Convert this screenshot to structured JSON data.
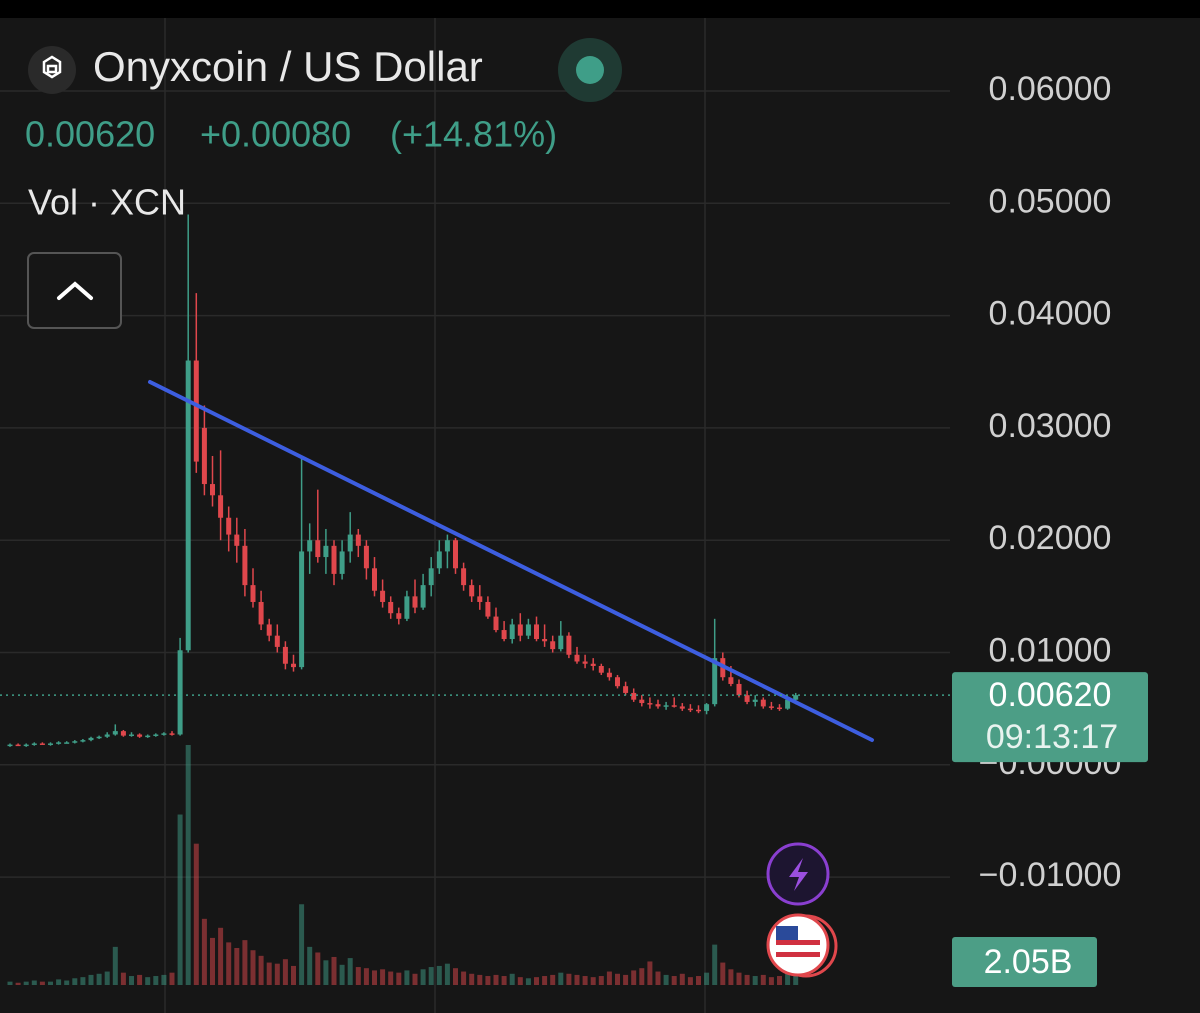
{
  "header": {
    "title": "Onyxcoin / US Dollar",
    "price": "0.00620",
    "change": "+0.00080",
    "change_pct": "(+14.81%)",
    "panel_label": "Vol · XCN"
  },
  "chart_data": {
    "type": "candlestick",
    "up_color": "#3f9e88",
    "down_color": "#e0474c",
    "ylim": [
      -0.0221,
      0.0665
    ],
    "yticks": [
      {
        "value": 0.06,
        "label": "0.06000"
      },
      {
        "value": 0.05,
        "label": "0.05000"
      },
      {
        "value": 0.04,
        "label": "0.04000"
      },
      {
        "value": 0.03,
        "label": "0.03000"
      },
      {
        "value": 0.02,
        "label": "0.02000"
      },
      {
        "value": 0.01,
        "label": "0.01000"
      },
      {
        "value": 0,
        "label": "−0.00000"
      },
      {
        "value": -0.01,
        "label": "−0.01000"
      }
    ],
    "grid": true,
    "open": [
      0.0017,
      0.0018,
      0.0017,
      0.0018,
      0.0019,
      0.0018,
      0.0019,
      0.002,
      0.002,
      0.0021,
      0.0022,
      0.0024,
      0.0025,
      0.0027,
      0.003,
      0.0026,
      0.0027,
      0.0025,
      0.0026,
      0.0027,
      0.0028,
      0.0027,
      0.0102,
      0.036,
      0.03,
      0.025,
      0.024,
      0.022,
      0.0205,
      0.0195,
      0.016,
      0.0145,
      0.0125,
      0.0115,
      0.0105,
      0.009,
      0.0087,
      0.019,
      0.02,
      0.0185,
      0.0195,
      0.017,
      0.019,
      0.0205,
      0.0195,
      0.0175,
      0.0155,
      0.0145,
      0.0135,
      0.013,
      0.015,
      0.014,
      0.016,
      0.0175,
      0.019,
      0.02,
      0.0175,
      0.016,
      0.015,
      0.0145,
      0.0132,
      0.012,
      0.0112,
      0.0125,
      0.0115,
      0.0125,
      0.0112,
      0.011,
      0.0103,
      0.0115,
      0.0098,
      0.0092,
      0.009,
      0.0088,
      0.0082,
      0.0078,
      0.007,
      0.0064,
      0.0058,
      0.0055,
      0.0054,
      0.0052,
      0.0053,
      0.0052,
      0.005,
      0.0049,
      0.0048,
      0.0054,
      0.0095,
      0.0078,
      0.0072,
      0.0062,
      0.0056,
      0.0058,
      0.0052,
      0.0051,
      0.005,
      0.0058
    ],
    "high": [
      0.0019,
      0.0019,
      0.0019,
      0.002,
      0.002,
      0.002,
      0.0021,
      0.0021,
      0.0022,
      0.0023,
      0.0025,
      0.0026,
      0.0029,
      0.0036,
      0.0031,
      0.0029,
      0.0028,
      0.0027,
      0.0028,
      0.0029,
      0.003,
      0.0113,
      0.049,
      0.042,
      0.032,
      0.0275,
      0.028,
      0.023,
      0.022,
      0.021,
      0.0175,
      0.0155,
      0.013,
      0.0125,
      0.011,
      0.0098,
      0.0275,
      0.0215,
      0.0245,
      0.021,
      0.02,
      0.02,
      0.0225,
      0.021,
      0.02,
      0.0185,
      0.0165,
      0.015,
      0.014,
      0.0155,
      0.0165,
      0.017,
      0.0185,
      0.02,
      0.0205,
      0.0202,
      0.018,
      0.0165,
      0.016,
      0.015,
      0.014,
      0.0128,
      0.013,
      0.0135,
      0.013,
      0.0132,
      0.0125,
      0.0115,
      0.0128,
      0.0118,
      0.0105,
      0.0098,
      0.0095,
      0.009,
      0.0086,
      0.008,
      0.0074,
      0.0068,
      0.0062,
      0.006,
      0.0058,
      0.0056,
      0.006,
      0.0055,
      0.0054,
      0.0053,
      0.0055,
      0.013,
      0.01,
      0.0088,
      0.0076,
      0.0066,
      0.0062,
      0.006,
      0.0056,
      0.0054,
      0.006,
      0.0064
    ],
    "low": [
      0.0016,
      0.0017,
      0.0016,
      0.0017,
      0.0018,
      0.0017,
      0.0018,
      0.0019,
      0.0019,
      0.002,
      0.0021,
      0.0023,
      0.0024,
      0.0026,
      0.0025,
      0.0025,
      0.0024,
      0.0024,
      0.0025,
      0.0026,
      0.0026,
      0.0026,
      0.01,
      0.026,
      0.024,
      0.023,
      0.02,
      0.019,
      0.018,
      0.015,
      0.014,
      0.012,
      0.011,
      0.01,
      0.0085,
      0.0083,
      0.0085,
      0.017,
      0.018,
      0.017,
      0.016,
      0.0165,
      0.018,
      0.0185,
      0.0165,
      0.015,
      0.014,
      0.013,
      0.0125,
      0.0128,
      0.0135,
      0.0138,
      0.015,
      0.017,
      0.0175,
      0.017,
      0.0155,
      0.0145,
      0.0138,
      0.013,
      0.0118,
      0.011,
      0.0108,
      0.011,
      0.0112,
      0.011,
      0.0105,
      0.01,
      0.0101,
      0.0095,
      0.009,
      0.0086,
      0.0084,
      0.008,
      0.0075,
      0.0068,
      0.0062,
      0.0056,
      0.0052,
      0.005,
      0.005,
      0.0049,
      0.0051,
      0.0048,
      0.0047,
      0.0046,
      0.0045,
      0.0052,
      0.0075,
      0.007,
      0.006,
      0.0054,
      0.0052,
      0.005,
      0.0049,
      0.0048,
      0.0049,
      0.0054
    ],
    "close": [
      0.0018,
      0.0017,
      0.0018,
      0.0019,
      0.0018,
      0.0019,
      0.002,
      0.002,
      0.0021,
      0.0022,
      0.0024,
      0.0025,
      0.0027,
      0.003,
      0.0026,
      0.0027,
      0.0025,
      0.0026,
      0.0027,
      0.0028,
      0.0027,
      0.0102,
      0.036,
      0.027,
      0.025,
      0.024,
      0.022,
      0.0205,
      0.0195,
      0.016,
      0.0145,
      0.0125,
      0.0115,
      0.0105,
      0.009,
      0.0087,
      0.019,
      0.02,
      0.0185,
      0.0195,
      0.017,
      0.019,
      0.0205,
      0.0195,
      0.0175,
      0.0155,
      0.0145,
      0.0135,
      0.013,
      0.015,
      0.014,
      0.016,
      0.0175,
      0.019,
      0.02,
      0.0175,
      0.016,
      0.015,
      0.0145,
      0.0132,
      0.012,
      0.0112,
      0.0125,
      0.0115,
      0.0125,
      0.0112,
      0.011,
      0.0103,
      0.0115,
      0.0098,
      0.0092,
      0.009,
      0.0088,
      0.0082,
      0.0078,
      0.007,
      0.0064,
      0.0058,
      0.0055,
      0.0054,
      0.0052,
      0.0053,
      0.0052,
      0.005,
      0.0049,
      0.0048,
      0.0054,
      0.0095,
      0.0078,
      0.0072,
      0.0062,
      0.0056,
      0.0058,
      0.0052,
      0.0051,
      0.005,
      0.0058,
      0.0062
    ],
    "volume": [
      0.3,
      0.2,
      0.3,
      0.4,
      0.3,
      0.3,
      0.5,
      0.4,
      0.6,
      0.7,
      0.9,
      1.0,
      1.2,
      3.4,
      1.1,
      0.8,
      0.9,
      0.7,
      0.8,
      0.9,
      1.1,
      15.2,
      21.4,
      12.6,
      5.9,
      4.2,
      5.1,
      3.8,
      3.3,
      4.0,
      3.1,
      2.6,
      2.0,
      1.9,
      2.3,
      1.7,
      7.2,
      3.4,
      2.9,
      2.2,
      2.5,
      1.8,
      2.4,
      1.6,
      1.5,
      1.3,
      1.4,
      1.2,
      1.1,
      1.3,
      1.0,
      1.4,
      1.6,
      1.7,
      1.9,
      1.5,
      1.2,
      1.0,
      0.9,
      0.8,
      0.9,
      0.8,
      1.0,
      0.7,
      0.6,
      0.7,
      0.8,
      0.9,
      1.1,
      1.0,
      0.9,
      0.8,
      0.7,
      0.8,
      1.2,
      1.0,
      0.9,
      1.3,
      1.5,
      2.1,
      1.2,
      0.9,
      0.8,
      1.0,
      0.7,
      0.8,
      1.1,
      3.6,
      2.0,
      1.4,
      1.1,
      0.9,
      0.8,
      0.9,
      0.7,
      0.8,
      1.1,
      2.05
    ],
    "price_tag": {
      "value": 0.0062,
      "label": "0.00620",
      "countdown": "09:13:17"
    },
    "volume_tag": {
      "value": 2.05,
      "label": "2.05B"
    }
  }
}
